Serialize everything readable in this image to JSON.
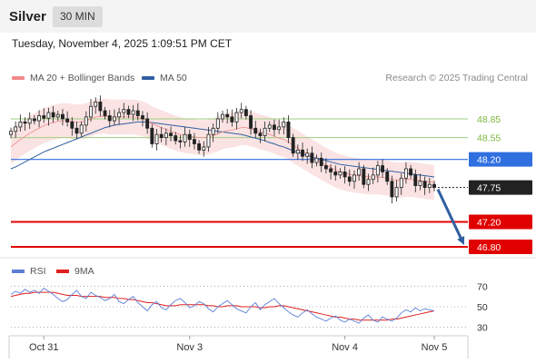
{
  "header": {
    "title": "Silver",
    "timeframe": "30 MIN"
  },
  "datetime": "Tuesday, November 4, 2025 1:09:51 PM CET",
  "legend": {
    "bb": {
      "label": "MA 20 + Bollinger Bands",
      "color": "#f08a8a"
    },
    "ma50": {
      "label": "MA 50",
      "color": "#2f5fa0"
    },
    "credit": "Research © 2025 Trading Central"
  },
  "rsi_legend": {
    "rsi": {
      "label": "RSI",
      "color": "#5b7fd6"
    },
    "ma": {
      "label": "9MA",
      "color": "#e02020"
    }
  },
  "chart_data": {
    "type": "candlestick",
    "symbol": "Silver",
    "interval": "30 MIN",
    "price_range": [
      46.8,
      49.3
    ],
    "x_labels": [
      {
        "label": "Oct 31",
        "index": 7
      },
      {
        "label": "Nov 3",
        "index": 38
      },
      {
        "label": "Nov 4",
        "index": 71
      },
      {
        "label": "Nov 5",
        "index": 90
      }
    ],
    "levels": [
      {
        "value": "48.85",
        "price": 48.85,
        "kind": "resistance",
        "line_color": "#9ccf80",
        "text_color": "#7fb63e"
      },
      {
        "value": "48.55",
        "price": 48.55,
        "kind": "resistance",
        "line_color": "#9ccf80",
        "text_color": "#7fb63e"
      },
      {
        "value": "48.20",
        "price": 48.2,
        "kind": "pivot",
        "line_color": "#2f6fe0",
        "box_color": "#2f6fe0"
      },
      {
        "value": "47.75",
        "price": 47.75,
        "kind": "last",
        "line_color": "#222222",
        "box_color": "#222222"
      },
      {
        "value": "47.20",
        "price": 47.2,
        "kind": "support",
        "line_color": "#e00000",
        "box_color": "#e00000"
      },
      {
        "value": "46.80",
        "price": 46.8,
        "kind": "support",
        "line_color": "#e00000",
        "box_color": "#e00000"
      }
    ],
    "close": [
      48.65,
      48.72,
      48.8,
      48.78,
      48.85,
      48.82,
      48.9,
      48.86,
      48.95,
      48.88,
      48.92,
      48.85,
      48.8,
      48.7,
      48.62,
      48.75,
      48.88,
      49.05,
      49.12,
      48.98,
      48.9,
      48.82,
      48.88,
      48.95,
      49.0,
      48.92,
      48.98,
      48.9,
      48.85,
      48.7,
      48.45,
      48.6,
      48.55,
      48.62,
      48.58,
      48.5,
      48.48,
      48.6,
      48.52,
      48.45,
      48.35,
      48.4,
      48.6,
      48.7,
      48.85,
      48.92,
      48.88,
      48.8,
      48.95,
      49.0,
      48.9,
      48.7,
      48.62,
      48.58,
      48.7,
      48.75,
      48.68,
      48.72,
      48.8,
      48.55,
      48.3,
      48.35,
      48.25,
      48.3,
      48.15,
      48.22,
      48.1,
      48.05,
      48.0,
      47.95,
      48.0,
      47.92,
      47.85,
      47.95,
      48.05,
      47.8,
      47.88,
      47.95,
      48.1,
      48.0,
      47.85,
      47.6,
      47.75,
      47.9,
      48.05,
      47.95,
      47.78,
      47.85,
      47.75,
      47.8,
      47.75
    ],
    "ma20": [
      48.4,
      48.46,
      48.52,
      48.57,
      48.62,
      48.66,
      48.7,
      48.74,
      48.77,
      48.79,
      48.81,
      48.82,
      48.82,
      48.81,
      48.8,
      48.8,
      48.82,
      48.85,
      48.88,
      48.89,
      48.89,
      48.88,
      48.88,
      48.88,
      48.88,
      48.88,
      48.88,
      48.87,
      48.85,
      48.82,
      48.77,
      48.74,
      48.71,
      48.68,
      48.65,
      48.62,
      48.6,
      48.58,
      48.57,
      48.56,
      48.55,
      48.55,
      48.56,
      48.58,
      48.61,
      48.64,
      48.66,
      48.67,
      48.69,
      48.71,
      48.71,
      48.69,
      48.67,
      48.64,
      48.62,
      48.6,
      48.57,
      48.54,
      48.52,
      48.48,
      48.42,
      48.38,
      48.33,
      48.29,
      48.24,
      48.2,
      48.15,
      48.11,
      48.07,
      48.03,
      48.0,
      47.98,
      47.96,
      47.95,
      47.94,
      47.93,
      47.92,
      47.92,
      47.92,
      47.91,
      47.9,
      47.88,
      47.87,
      47.87,
      47.88,
      47.88,
      47.87,
      47.86,
      47.85,
      47.84,
      47.83
    ],
    "ma50": [
      48.05,
      48.08,
      48.12,
      48.16,
      48.2,
      48.24,
      48.28,
      48.32,
      48.35,
      48.38,
      48.41,
      48.44,
      48.47,
      48.5,
      48.53,
      48.56,
      48.59,
      48.62,
      48.65,
      48.68,
      48.71,
      48.73,
      48.75,
      48.76,
      48.77,
      48.78,
      48.79,
      48.8,
      48.8,
      48.8,
      48.79,
      48.78,
      48.77,
      48.76,
      48.75,
      48.74,
      48.73,
      48.72,
      48.71,
      48.7,
      48.69,
      48.68,
      48.67,
      48.66,
      48.65,
      48.64,
      48.63,
      48.62,
      48.61,
      48.6,
      48.58,
      48.56,
      48.54,
      48.52,
      48.5,
      48.47,
      48.45,
      48.42,
      48.4,
      48.37,
      48.34,
      48.31,
      48.29,
      48.26,
      48.24,
      48.22,
      48.2,
      48.18,
      48.16,
      48.14,
      48.12,
      48.11,
      48.1,
      48.09,
      48.08,
      48.07,
      48.06,
      48.05,
      48.04,
      48.03,
      48.02,
      48.01,
      48.0,
      47.99,
      47.98,
      47.97,
      47.96,
      47.95,
      47.94,
      47.93,
      47.92
    ],
    "forecast_arrow": {
      "from_price": 47.75,
      "to_price": 46.8,
      "color": "#2f5fa0"
    },
    "rsi": {
      "ticks": [
        {
          "value": 70,
          "label": "70"
        },
        {
          "value": 50,
          "label": "50"
        },
        {
          "value": 30,
          "label": "30"
        }
      ],
      "range": [
        20,
        80
      ],
      "rsi_values": [
        62,
        65,
        63,
        67,
        64,
        66,
        63,
        68,
        65,
        62,
        58,
        55,
        57,
        62,
        66,
        60,
        58,
        64,
        61,
        59,
        56,
        58,
        62,
        55,
        53,
        57,
        60,
        54,
        50,
        46,
        52,
        55,
        49,
        47,
        52,
        56,
        58,
        54,
        49,
        51,
        55,
        53,
        48,
        45,
        50,
        53,
        56,
        52,
        48,
        46,
        44,
        50,
        54,
        47,
        52,
        55,
        58,
        53,
        49,
        45,
        42,
        40,
        44,
        47,
        43,
        40,
        38,
        36,
        39,
        41,
        37,
        35,
        38,
        36,
        34,
        39,
        42,
        37,
        35,
        40,
        38,
        36,
        39,
        44,
        47,
        45,
        49,
        46,
        48,
        47,
        46
      ],
      "ma_values": [
        60,
        61,
        62,
        63,
        63,
        64,
        64,
        64,
        64,
        64,
        63,
        62,
        61,
        61,
        61,
        60,
        60,
        60,
        60,
        60,
        59,
        59,
        59,
        58,
        58,
        57,
        57,
        56,
        55,
        54,
        54,
        53,
        52,
        51,
        51,
        51,
        52,
        52,
        52,
        52,
        52,
        52,
        51,
        51,
        50,
        50,
        51,
        51,
        51,
        50,
        50,
        50,
        50,
        49,
        49,
        50,
        50,
        51,
        51,
        50,
        49,
        48,
        47,
        46,
        45,
        44,
        43,
        42,
        41,
        40,
        40,
        39,
        38,
        38,
        37,
        37,
        37,
        37,
        37,
        37,
        37,
        38,
        38,
        39,
        40,
        41,
        42,
        43,
        44,
        45,
        46
      ]
    }
  }
}
